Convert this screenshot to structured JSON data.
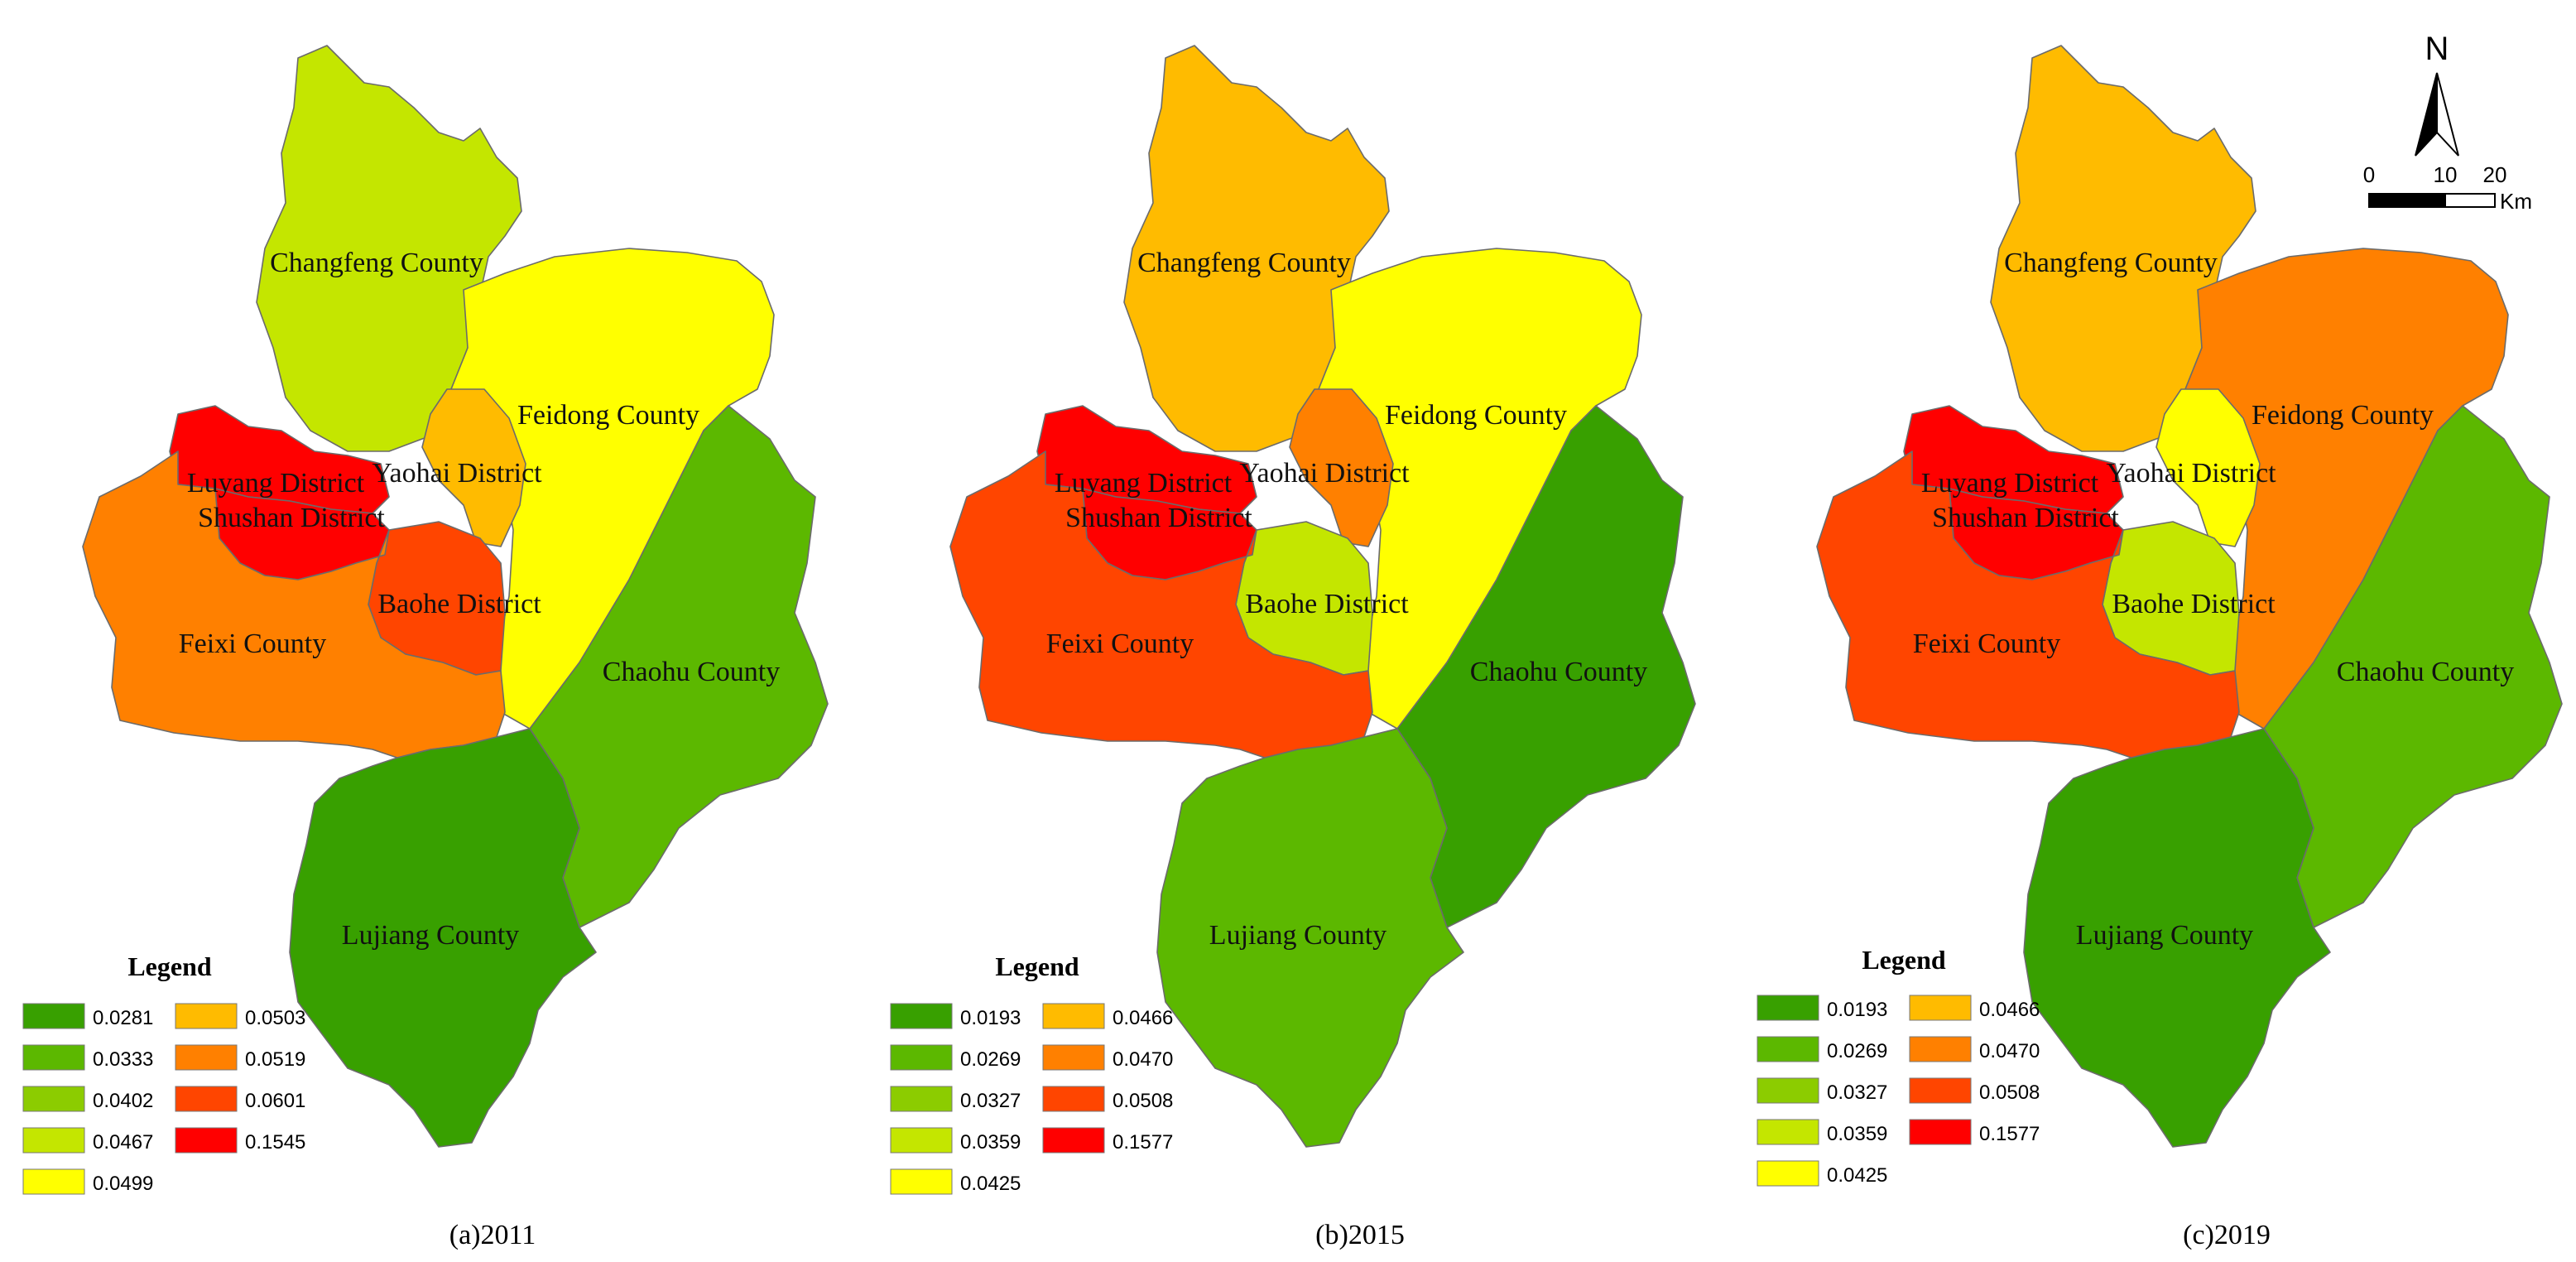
{
  "panels": [
    {
      "caption": "(a)2011",
      "legend": {
        "title": "Legend",
        "items": [
          {
            "value": "0.0281",
            "color": "#38a000"
          },
          {
            "value": "0.0333",
            "color": "#5cb800"
          },
          {
            "value": "0.0402",
            "color": "#8ccc00"
          },
          {
            "value": "0.0467",
            "color": "#c4e600"
          },
          {
            "value": "0.0499",
            "color": "#ffff00"
          },
          {
            "value": "0.0503",
            "color": "#ffbb00"
          },
          {
            "value": "0.0519",
            "color": "#ff8000"
          },
          {
            "value": "0.0601",
            "color": "#ff4500"
          },
          {
            "value": "0.1545",
            "color": "#ff0000"
          }
        ]
      },
      "regions": {
        "changfeng": {
          "name": "Changfeng County",
          "color": "#c4e600"
        },
        "feidong": {
          "name": "Feidong County",
          "color": "#ffff00"
        },
        "yaohai": {
          "name": "Yaohai District",
          "color": "#ffbb00"
        },
        "luyang": {
          "name": "Luyang District",
          "color": "#ff0000"
        },
        "shushan": {
          "name": "Shushan District",
          "color": "#ff0000"
        },
        "baohe": {
          "name": "Baohe District",
          "color": "#ff4500"
        },
        "feixi": {
          "name": "Feixi County",
          "color": "#ff8000"
        },
        "chaohu": {
          "name": "Chaohu County",
          "color": "#5cb800"
        },
        "lujiang": {
          "name": "Lujiang County",
          "color": "#38a000"
        }
      }
    },
    {
      "caption": "(b)2015",
      "legend": {
        "title": "Legend",
        "items": [
          {
            "value": "0.0193",
            "color": "#38a000"
          },
          {
            "value": "0.0269",
            "color": "#5cb800"
          },
          {
            "value": "0.0327",
            "color": "#8ccc00"
          },
          {
            "value": "0.0359",
            "color": "#c4e600"
          },
          {
            "value": "0.0425",
            "color": "#ffff00"
          },
          {
            "value": "0.0466",
            "color": "#ffbb00"
          },
          {
            "value": "0.0470",
            "color": "#ff8000"
          },
          {
            "value": "0.0508",
            "color": "#ff4500"
          },
          {
            "value": "0.1577",
            "color": "#ff0000"
          }
        ]
      },
      "regions": {
        "changfeng": {
          "name": "Changfeng County",
          "color": "#ffbb00"
        },
        "feidong": {
          "name": "Feidong County",
          "color": "#ffff00"
        },
        "yaohai": {
          "name": "Yaohai District",
          "color": "#ff8000"
        },
        "luyang": {
          "name": "Luyang District",
          "color": "#ff0000"
        },
        "shushan": {
          "name": "Shushan District",
          "color": "#ff0000"
        },
        "baohe": {
          "name": "Baohe District",
          "color": "#c4e600"
        },
        "feixi": {
          "name": "Feixi County",
          "color": "#ff4500"
        },
        "chaohu": {
          "name": "Chaohu County",
          "color": "#38a000"
        },
        "lujiang": {
          "name": "Lujiang County",
          "color": "#5cb800"
        }
      }
    },
    {
      "caption": "(c)2019",
      "legend": {
        "title": "Legend",
        "items": [
          {
            "value": "0.0193",
            "color": "#38a000"
          },
          {
            "value": "0.0269",
            "color": "#5cb800"
          },
          {
            "value": "0.0327",
            "color": "#8ccc00"
          },
          {
            "value": "0.0359",
            "color": "#c4e600"
          },
          {
            "value": "0.0425",
            "color": "#ffff00"
          },
          {
            "value": "0.0466",
            "color": "#ffbb00"
          },
          {
            "value": "0.0470",
            "color": "#ff8000"
          },
          {
            "value": "0.0508",
            "color": "#ff4500"
          },
          {
            "value": "0.1577",
            "color": "#ff0000"
          }
        ]
      },
      "regions": {
        "changfeng": {
          "name": "Changfeng County",
          "color": "#ffbb00"
        },
        "feidong": {
          "name": "Feidong County",
          "color": "#ff8000"
        },
        "yaohai": {
          "name": "Yaohai District",
          "color": "#ffff00"
        },
        "luyang": {
          "name": "Luyang District",
          "color": "#ff0000"
        },
        "shushan": {
          "name": "Shushan District",
          "color": "#ff0000"
        },
        "baohe": {
          "name": "Baohe District",
          "color": "#c4e600"
        },
        "feixi": {
          "name": "Feixi County",
          "color": "#ff4500"
        },
        "chaohu": {
          "name": "Chaohu County",
          "color": "#5cb800"
        },
        "lujiang": {
          "name": "Lujiang County",
          "color": "#38a000"
        }
      }
    }
  ],
  "north_arrow": {
    "label": "N"
  },
  "scale_bar": {
    "ticks": [
      "0",
      "10",
      "20"
    ],
    "unit": "Km"
  }
}
